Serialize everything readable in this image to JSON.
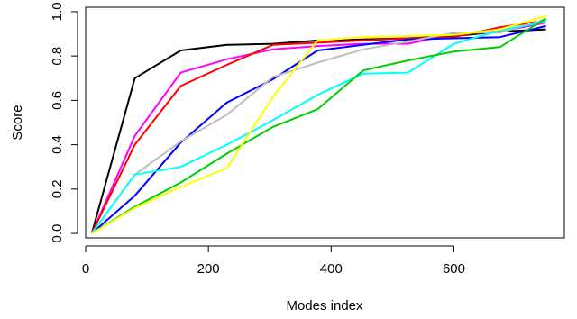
{
  "chart_data": {
    "type": "line",
    "title": "",
    "xlabel": "Modes index",
    "ylabel": "Score",
    "xlim": [
      0,
      780
    ],
    "ylim": [
      -0.02,
      1.02
    ],
    "x_ticks": [
      0,
      200,
      400,
      600
    ],
    "y_ticks": [
      0.0,
      0.2,
      0.4,
      0.6,
      0.8,
      1.0
    ],
    "x_tick_labels": [
      "0",
      "200",
      "400",
      "600"
    ],
    "y_tick_labels": [
      "0.0",
      "0.2",
      "0.4",
      "0.6",
      "0.8",
      "1.0"
    ],
    "grid": false,
    "legend": "none",
    "x": [
      10,
      80,
      155,
      230,
      305,
      378,
      452,
      525,
      600,
      675,
      750
    ],
    "series": [
      {
        "color": "#000000",
        "values": [
          0.0,
          0.7,
          0.825,
          0.85,
          0.855,
          0.87,
          0.875,
          0.88,
          0.89,
          0.91,
          0.92
        ]
      },
      {
        "color": "#ff00ff",
        "values": [
          0.0,
          0.44,
          0.725,
          0.785,
          0.83,
          0.845,
          0.855,
          0.855,
          0.9,
          0.91,
          0.95
        ]
      },
      {
        "color": "#ff0000",
        "values": [
          0.0,
          0.4,
          0.665,
          0.76,
          0.85,
          0.86,
          0.87,
          0.88,
          0.885,
          0.93,
          0.96
        ]
      },
      {
        "color": "#0000ff",
        "values": [
          0.0,
          0.17,
          0.41,
          0.59,
          0.695,
          0.825,
          0.85,
          0.875,
          0.88,
          0.885,
          0.935
        ]
      },
      {
        "color": "#bebebe",
        "values": [
          0.0,
          0.265,
          0.415,
          0.535,
          0.705,
          0.77,
          0.83,
          0.865,
          0.905,
          0.905,
          0.965
        ]
      },
      {
        "color": "#00ffff",
        "values": [
          0.0,
          0.265,
          0.3,
          0.4,
          0.51,
          0.625,
          0.72,
          0.725,
          0.855,
          0.915,
          0.955
        ]
      },
      {
        "color": "#00cd00",
        "values": [
          0.0,
          0.12,
          0.23,
          0.36,
          0.48,
          0.56,
          0.735,
          0.78,
          0.82,
          0.84,
          0.97
        ]
      },
      {
        "color": "#ffff00",
        "values": [
          0.0,
          0.115,
          0.21,
          0.295,
          0.615,
          0.87,
          0.885,
          0.89,
          0.895,
          0.92,
          0.98
        ]
      }
    ]
  }
}
